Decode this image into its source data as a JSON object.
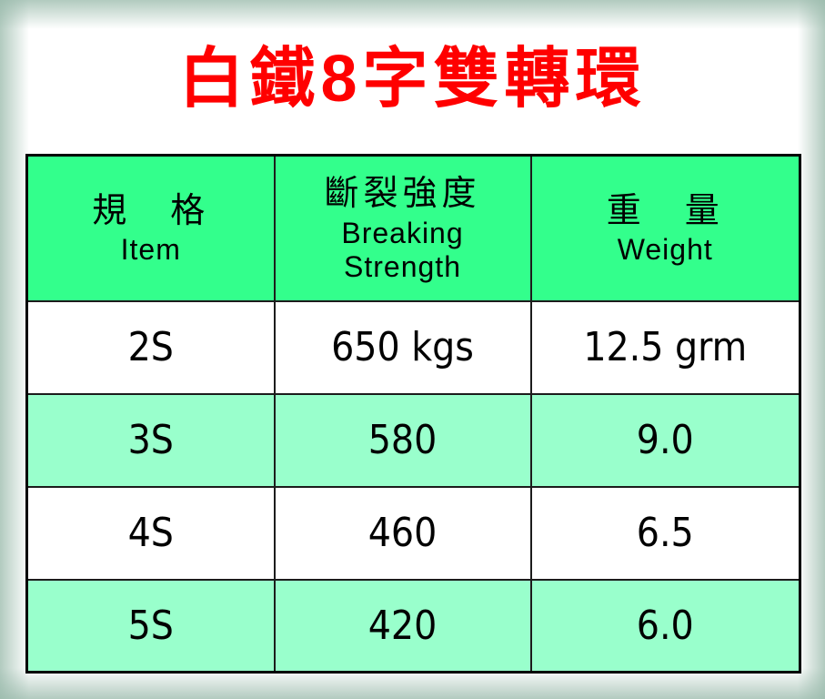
{
  "page": {
    "title": "白鐵8字雙轉環",
    "title_color": "#ff0000",
    "edge_vignette_color": "#98b9aa",
    "background_color": "#ffffff"
  },
  "table": {
    "header_bg": "#33ff8c",
    "row_white_bg": "#ffffff",
    "row_green_bg": "#99ffcc",
    "border_color": "#000000",
    "columns": [
      {
        "zh": "規　格",
        "en_lines": [
          "Item"
        ]
      },
      {
        "zh": "斷裂強度",
        "en_lines": [
          "Breaking",
          "Strength"
        ]
      },
      {
        "zh": "重　量",
        "en_lines": [
          "Weight"
        ]
      }
    ],
    "rows": [
      {
        "item": "2S",
        "strength": "650 kgs",
        "weight": "12.5 grm"
      },
      {
        "item": "3S",
        "strength": "580",
        "weight": "9.0"
      },
      {
        "item": "4S",
        "strength": "460",
        "weight": "6.5"
      },
      {
        "item": "5S",
        "strength": "420",
        "weight": "6.0"
      }
    ]
  },
  "chart_data": {
    "type": "table",
    "title": "白鐵8字雙轉環",
    "columns": [
      "規格 Item",
      "斷裂強度 Breaking Strength",
      "重量 Weight"
    ],
    "rows": [
      [
        "2S",
        "650 kgs",
        "12.5 grm"
      ],
      [
        "3S",
        "580",
        "9.0"
      ],
      [
        "4S",
        "460",
        "6.5"
      ],
      [
        "5S",
        "420",
        "6.0"
      ]
    ]
  }
}
